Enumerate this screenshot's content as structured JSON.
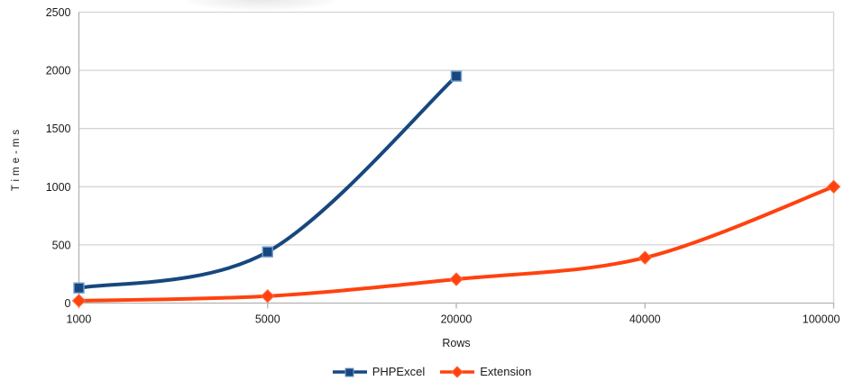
{
  "chart_data": {
    "type": "line",
    "categories": [
      "1000",
      "5000",
      "20000",
      "40000",
      "100000"
    ],
    "series": [
      {
        "name": "PHPExcel",
        "values": [
          130,
          440,
          1950,
          null,
          null
        ],
        "color": "#17477e",
        "marker": "square",
        "marker_border": "#729fcf"
      },
      {
        "name": "Extension",
        "values": [
          20,
          60,
          205,
          390,
          1000
        ],
        "color": "#ff420e",
        "marker": "diamond",
        "marker_border": "#ff6a3c"
      }
    ],
    "title": "",
    "xlabel": "Rows",
    "ylabel": "Time-ms",
    "ylim": [
      0,
      2500
    ],
    "yticks": [
      0,
      500,
      1000,
      1500,
      2000,
      2500
    ],
    "grid": "horizontal",
    "legend_position": "bottom",
    "line_smoothing": true,
    "grid_color": "#d4d4d4",
    "axis_color": "#b2b2b2",
    "text_color": "#1a1a1a",
    "background": "#ffffff"
  }
}
